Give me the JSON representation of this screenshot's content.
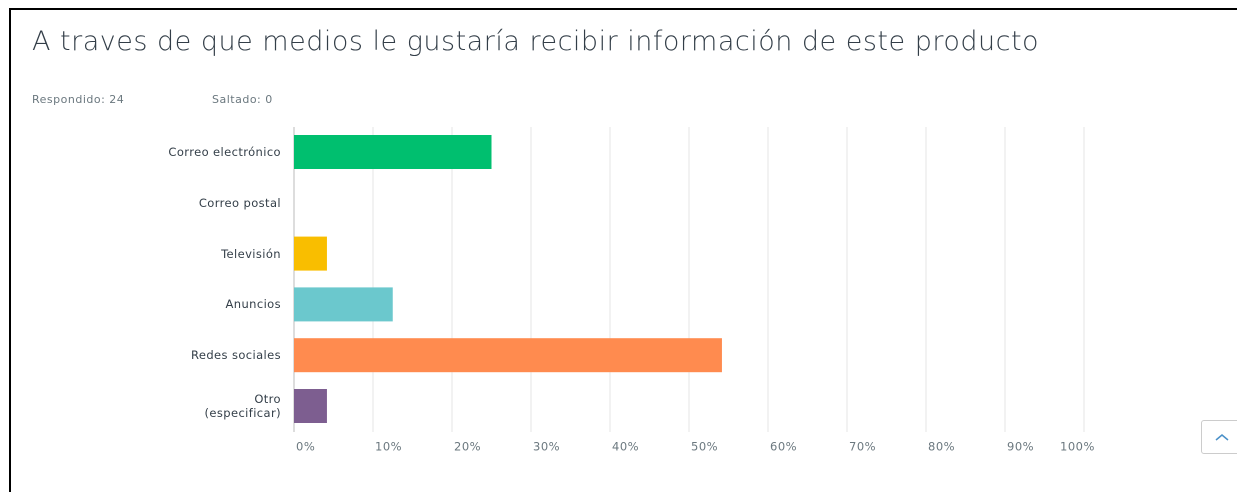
{
  "chart_data": {
    "type": "bar",
    "orientation": "horizontal",
    "title": "A traves de que medios le gustaría recibir información de este producto",
    "answered": "Respondido: 24",
    "skipped": "Saltado: 0",
    "categories": [
      "Correo electrónico",
      "Correo postal",
      "Televisión",
      "Anuncios",
      "Redes sociales",
      "Otro (especificar)"
    ],
    "values": [
      25,
      0,
      4.17,
      12.5,
      54.17,
      4.17
    ],
    "colors": [
      "#00bf6f",
      "#c7c7c7",
      "#f9be00",
      "#6bc8cd",
      "#ff8b4f",
      "#7d5e90"
    ],
    "xlim": [
      0,
      100
    ],
    "xticks": [
      {
        "value": 0,
        "label": "0%"
      },
      {
        "value": 10,
        "label": "10%"
      },
      {
        "value": 20,
        "label": "20%"
      },
      {
        "value": 30,
        "label": "30%"
      },
      {
        "value": 40,
        "label": "40%"
      },
      {
        "value": 50,
        "label": "50%"
      },
      {
        "value": 60,
        "label": "60%"
      },
      {
        "value": 70,
        "label": "70%"
      },
      {
        "value": 80,
        "label": "80%"
      },
      {
        "value": 90,
        "label": "90%"
      },
      {
        "value": 100,
        "label": "100%"
      }
    ],
    "grid": true
  }
}
